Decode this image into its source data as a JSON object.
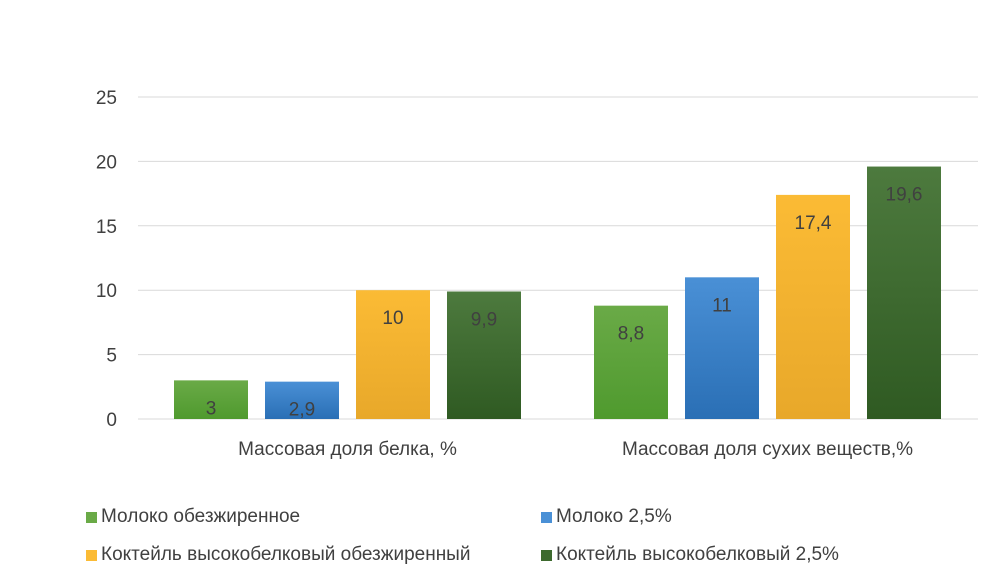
{
  "chart_data": {
    "type": "bar",
    "categories": [
      "Массовая доля белка, %",
      "Массовая доля сухих веществ,%"
    ],
    "series": [
      {
        "name": "Молоко обезжиренное",
        "values": [
          3,
          8.8
        ],
        "labels": [
          "3",
          "8,8"
        ],
        "color": "#6aaa47",
        "color_dark": "#4f9a2e"
      },
      {
        "name": "Молоко 2,5%",
        "values": [
          2.9,
          11
        ],
        "labels": [
          "2,9",
          "11"
        ],
        "color": "#4a90d6",
        "color_dark": "#2a6fb5"
      },
      {
        "name": "Коктейль высокобелковый обезжиренный",
        "values": [
          10,
          17.4
        ],
        "labels": [
          "10",
          "17,4"
        ],
        "color": "#fbbb35",
        "color_dark": "#e8a82a"
      },
      {
        "name": "Коктейль высокобелковый 2,5%",
        "values": [
          9.9,
          19.6
        ],
        "labels": [
          "9,9",
          "19,6"
        ],
        "color": "#4d7a3e",
        "color_dark": "#2f5a22"
      }
    ],
    "ylim": [
      0,
      25
    ],
    "yticks": [
      0,
      5,
      10,
      15,
      20,
      25
    ],
    "grid": true,
    "legend_position": "bottom",
    "title": "",
    "xlabel": "",
    "ylabel": ""
  }
}
